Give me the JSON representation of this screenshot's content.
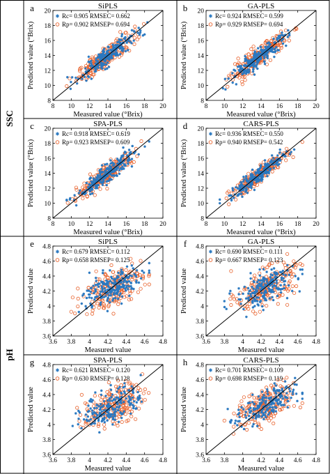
{
  "colors": {
    "calibration": "#2a78c0",
    "prediction": "#e8622c",
    "line": "#000000"
  },
  "row_labels": {
    "ssc": "SSC",
    "ph": "pH"
  },
  "chart_data": [
    {
      "type": "scatter",
      "letter": "a",
      "title": "SiPLS",
      "group": "ssc",
      "xlabel": "Measured value (°Brix)",
      "ylabel": "Predicted value (°Brix)",
      "xlim": [
        8,
        20
      ],
      "ylim": [
        8,
        20
      ],
      "xticks": [
        8,
        10,
        12,
        14,
        16,
        18,
        20
      ],
      "yticks": [
        8,
        10,
        12,
        14,
        16,
        18,
        20
      ],
      "legend": {
        "placement": "top-left",
        "calibration": "Rc= 0.905 RMSEC= 0.662",
        "prediction": "Rp= 0.902 RMSEP= 0.694"
      },
      "stats": {
        "Rc": 0.905,
        "RMSEC": 0.662,
        "Rp": 0.902,
        "RMSEP": 0.694
      },
      "reference_line": "y = x",
      "points_approx": {
        "center": [
          13.8,
          13.8
        ],
        "x_range": [
          9.5,
          18.5
        ],
        "count_per_series": 220
      }
    },
    {
      "type": "scatter",
      "letter": "b",
      "title": "GA-PLS",
      "group": "ssc",
      "xlabel": "Measured value (°Brix)",
      "ylabel": "Predicted value (°Brix)",
      "xlim": [
        8,
        20
      ],
      "ylim": [
        8,
        20
      ],
      "xticks": [
        8,
        10,
        12,
        14,
        16,
        18,
        20
      ],
      "yticks": [
        8,
        10,
        12,
        14,
        16,
        18,
        20
      ],
      "legend": {
        "placement": "top-left",
        "calibration": "Rc= 0.924 RMSEC= 0.599",
        "prediction": "Rp= 0.929 RMSEP= 0.694"
      },
      "stats": {
        "Rc": 0.924,
        "RMSEC": 0.599,
        "Rp": 0.929,
        "RMSEP": 0.694
      },
      "reference_line": "y = x",
      "points_approx": {
        "center": [
          13.8,
          13.8
        ],
        "x_range": [
          9.5,
          18.5
        ],
        "count_per_series": 220
      }
    },
    {
      "type": "scatter",
      "letter": "c",
      "title": "SPA-PLS",
      "group": "ssc",
      "xlabel": "Measured value (°Brix)",
      "ylabel": "Predicted value (°Brix)",
      "xlim": [
        8,
        20
      ],
      "ylim": [
        8,
        20
      ],
      "xticks": [
        8,
        10,
        12,
        14,
        16,
        18,
        20
      ],
      "yticks": [
        8,
        10,
        12,
        14,
        16,
        18,
        20
      ],
      "legend": {
        "placement": "top-left",
        "calibration": "Rc= 0.918 RMSEC= 0.619",
        "prediction": "Rp= 0.923 RMSEP= 0.609"
      },
      "stats": {
        "Rc": 0.918,
        "RMSEC": 0.619,
        "Rp": 0.923,
        "RMSEP": 0.609
      },
      "reference_line": "y = x",
      "points_approx": {
        "center": [
          13.8,
          13.8
        ],
        "x_range": [
          9.5,
          18.5
        ],
        "count_per_series": 220
      }
    },
    {
      "type": "scatter",
      "letter": "d",
      "title": "CARS-PLS",
      "group": "ssc",
      "xlabel": "Measured value (°Brix)",
      "ylabel": "Predicted value (°Brix)",
      "xlim": [
        8,
        20
      ],
      "ylim": [
        8,
        20
      ],
      "xticks": [
        8,
        10,
        12,
        14,
        16,
        18,
        20
      ],
      "yticks": [
        8,
        10,
        12,
        14,
        16,
        18,
        20
      ],
      "legend": {
        "placement": "top-left",
        "calibration": "Rc= 0.936 RMSEC= 0.550",
        "prediction": "Rp= 0.940 RMSEP= 0.542"
      },
      "stats": {
        "Rc": 0.936,
        "RMSEC": 0.55,
        "Rp": 0.94,
        "RMSEP": 0.542
      },
      "reference_line": "y = x",
      "points_approx": {
        "center": [
          13.8,
          13.8
        ],
        "x_range": [
          9.5,
          18.5
        ],
        "count_per_series": 220
      }
    },
    {
      "type": "scatter",
      "letter": "e",
      "title": "SiPLS",
      "group": "ph",
      "xlabel": "Measured value",
      "ylabel": "Predicted value",
      "xlim": [
        3.6,
        4.8
      ],
      "ylim": [
        3.6,
        4.8
      ],
      "xticks": [
        3.6,
        3.8,
        4,
        4.2,
        4.4,
        4.6,
        4.8
      ],
      "yticks": [
        3.6,
        3.8,
        4,
        4.2,
        4.4,
        4.6,
        4.8
      ],
      "legend": {
        "placement": "top-left",
        "calibration": "Rc= 0.679 RMSEC= 0.112",
        "prediction": "Rp= 0.658 RMSEP= 0.125"
      },
      "stats": {
        "Rc": 0.679,
        "RMSEC": 0.112,
        "Rp": 0.658,
        "RMSEP": 0.125
      },
      "reference_line": "y = x",
      "points_approx": {
        "center": [
          4.25,
          4.25
        ],
        "x_range": [
          3.8,
          4.65
        ],
        "count_per_series": 200
      }
    },
    {
      "type": "scatter",
      "letter": "f",
      "title": "GA-PLS",
      "group": "ph",
      "xlabel": "Measured value",
      "ylabel": "Predicted value",
      "xlim": [
        3.6,
        4.8
      ],
      "ylim": [
        3.6,
        4.8
      ],
      "xticks": [
        3.6,
        3.8,
        4,
        4.2,
        4.4,
        4.6,
        4.8
      ],
      "yticks": [
        3.6,
        3.8,
        4,
        4.2,
        4.4,
        4.6,
        4.8
      ],
      "legend": {
        "placement": "top-left",
        "calibration": "Rc= 0.690 RMSEC= 0.111",
        "prediction": "Rp= 0.667 RMSEP= 0.123"
      },
      "stats": {
        "Rc": 0.69,
        "RMSEC": 0.111,
        "Rp": 0.667,
        "RMSEP": 0.123
      },
      "reference_line": "y = x",
      "points_approx": {
        "center": [
          4.25,
          4.25
        ],
        "x_range": [
          3.8,
          4.65
        ],
        "count_per_series": 200
      }
    },
    {
      "type": "scatter",
      "letter": "g",
      "title": "SPA-PLS",
      "group": "ph",
      "xlabel": "Measured value",
      "ylabel": "Predicted value",
      "xlim": [
        3.6,
        4.8
      ],
      "ylim": [
        3.6,
        4.8
      ],
      "xticks": [
        3.6,
        3.8,
        4,
        4.2,
        4.4,
        4.6,
        4.8
      ],
      "yticks": [
        3.6,
        3.8,
        4,
        4.2,
        4.4,
        4.6,
        4.8
      ],
      "legend": {
        "placement": "top-left",
        "calibration": "Rc= 0.621 RMSEC= 0.120",
        "prediction": "Rp= 0.630 RMSEP= 0.128"
      },
      "stats": {
        "Rc": 0.621,
        "RMSEC": 0.12,
        "Rp": 0.63,
        "RMSEP": 0.128
      },
      "reference_line": "y = x",
      "points_approx": {
        "center": [
          4.25,
          4.25
        ],
        "x_range": [
          3.8,
          4.65
        ],
        "count_per_series": 200
      }
    },
    {
      "type": "scatter",
      "letter": "h",
      "title": "CARS-PLS",
      "group": "ph",
      "xlabel": "Measured value",
      "ylabel": "Predicted value",
      "xlim": [
        3.6,
        4.8
      ],
      "ylim": [
        3.6,
        4.8
      ],
      "xticks": [
        3.6,
        3.8,
        4,
        4.2,
        4.4,
        4.6,
        4.8
      ],
      "yticks": [
        3.6,
        3.8,
        4,
        4.2,
        4.4,
        4.6,
        4.8
      ],
      "legend": {
        "placement": "top-left",
        "calibration": "Rc= 0.701 RMSEC= 0.109",
        "prediction": "Rp= 0.698 RMSEP= 0.119"
      },
      "stats": {
        "Rc": 0.701,
        "RMSEC": 0.109,
        "Rp": 0.698,
        "RMSEP": 0.119
      },
      "reference_line": "y = x",
      "points_approx": {
        "center": [
          4.25,
          4.25
        ],
        "x_range": [
          3.8,
          4.65
        ],
        "count_per_series": 200
      }
    }
  ]
}
